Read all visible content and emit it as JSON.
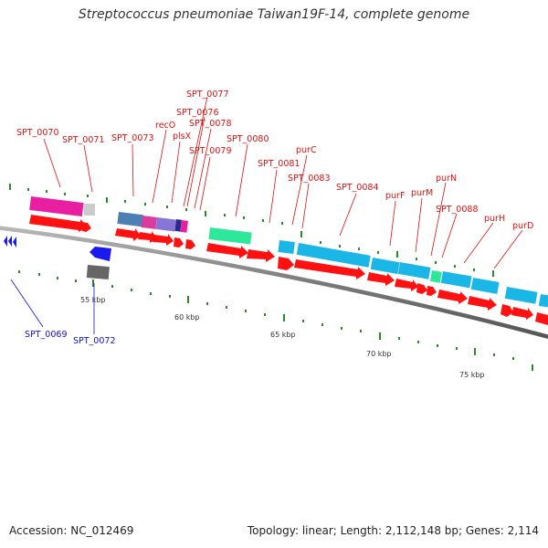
{
  "title": "Streptococcus pneumoniae Taiwan19F-14, complete genome",
  "footer": {
    "accession": "Accession: NC_012469",
    "summary": "Topology: linear; Length: 2,112,148 bp; Genes: 2,114"
  },
  "colors": {
    "backbone": "#888888",
    "cds": "#ff1111",
    "label_forward": "#dd1111",
    "label_reverse": "#1111cc",
    "tick": "#2a8a2a"
  },
  "kbp_ticks": [
    "55 kbp",
    "60 kbp",
    "65 kbp",
    "70 kbp",
    "75 kbp"
  ],
  "gene_labels_forward": [
    "SPT_0070",
    "SPT_0071",
    "SPT_0073",
    "recO",
    "plsX",
    "SPT_0077",
    "SPT_0076",
    "SPT_0078",
    "SPT_0079",
    "SPT_0080",
    "SPT_0081",
    "purC",
    "SPT_0083",
    "SPT_0084",
    "purF",
    "purM",
    "purN",
    "SPT_0088",
    "purH",
    "purD"
  ],
  "gene_labels_reverse": [
    "SPT_0069",
    "SPT_0072"
  ]
}
